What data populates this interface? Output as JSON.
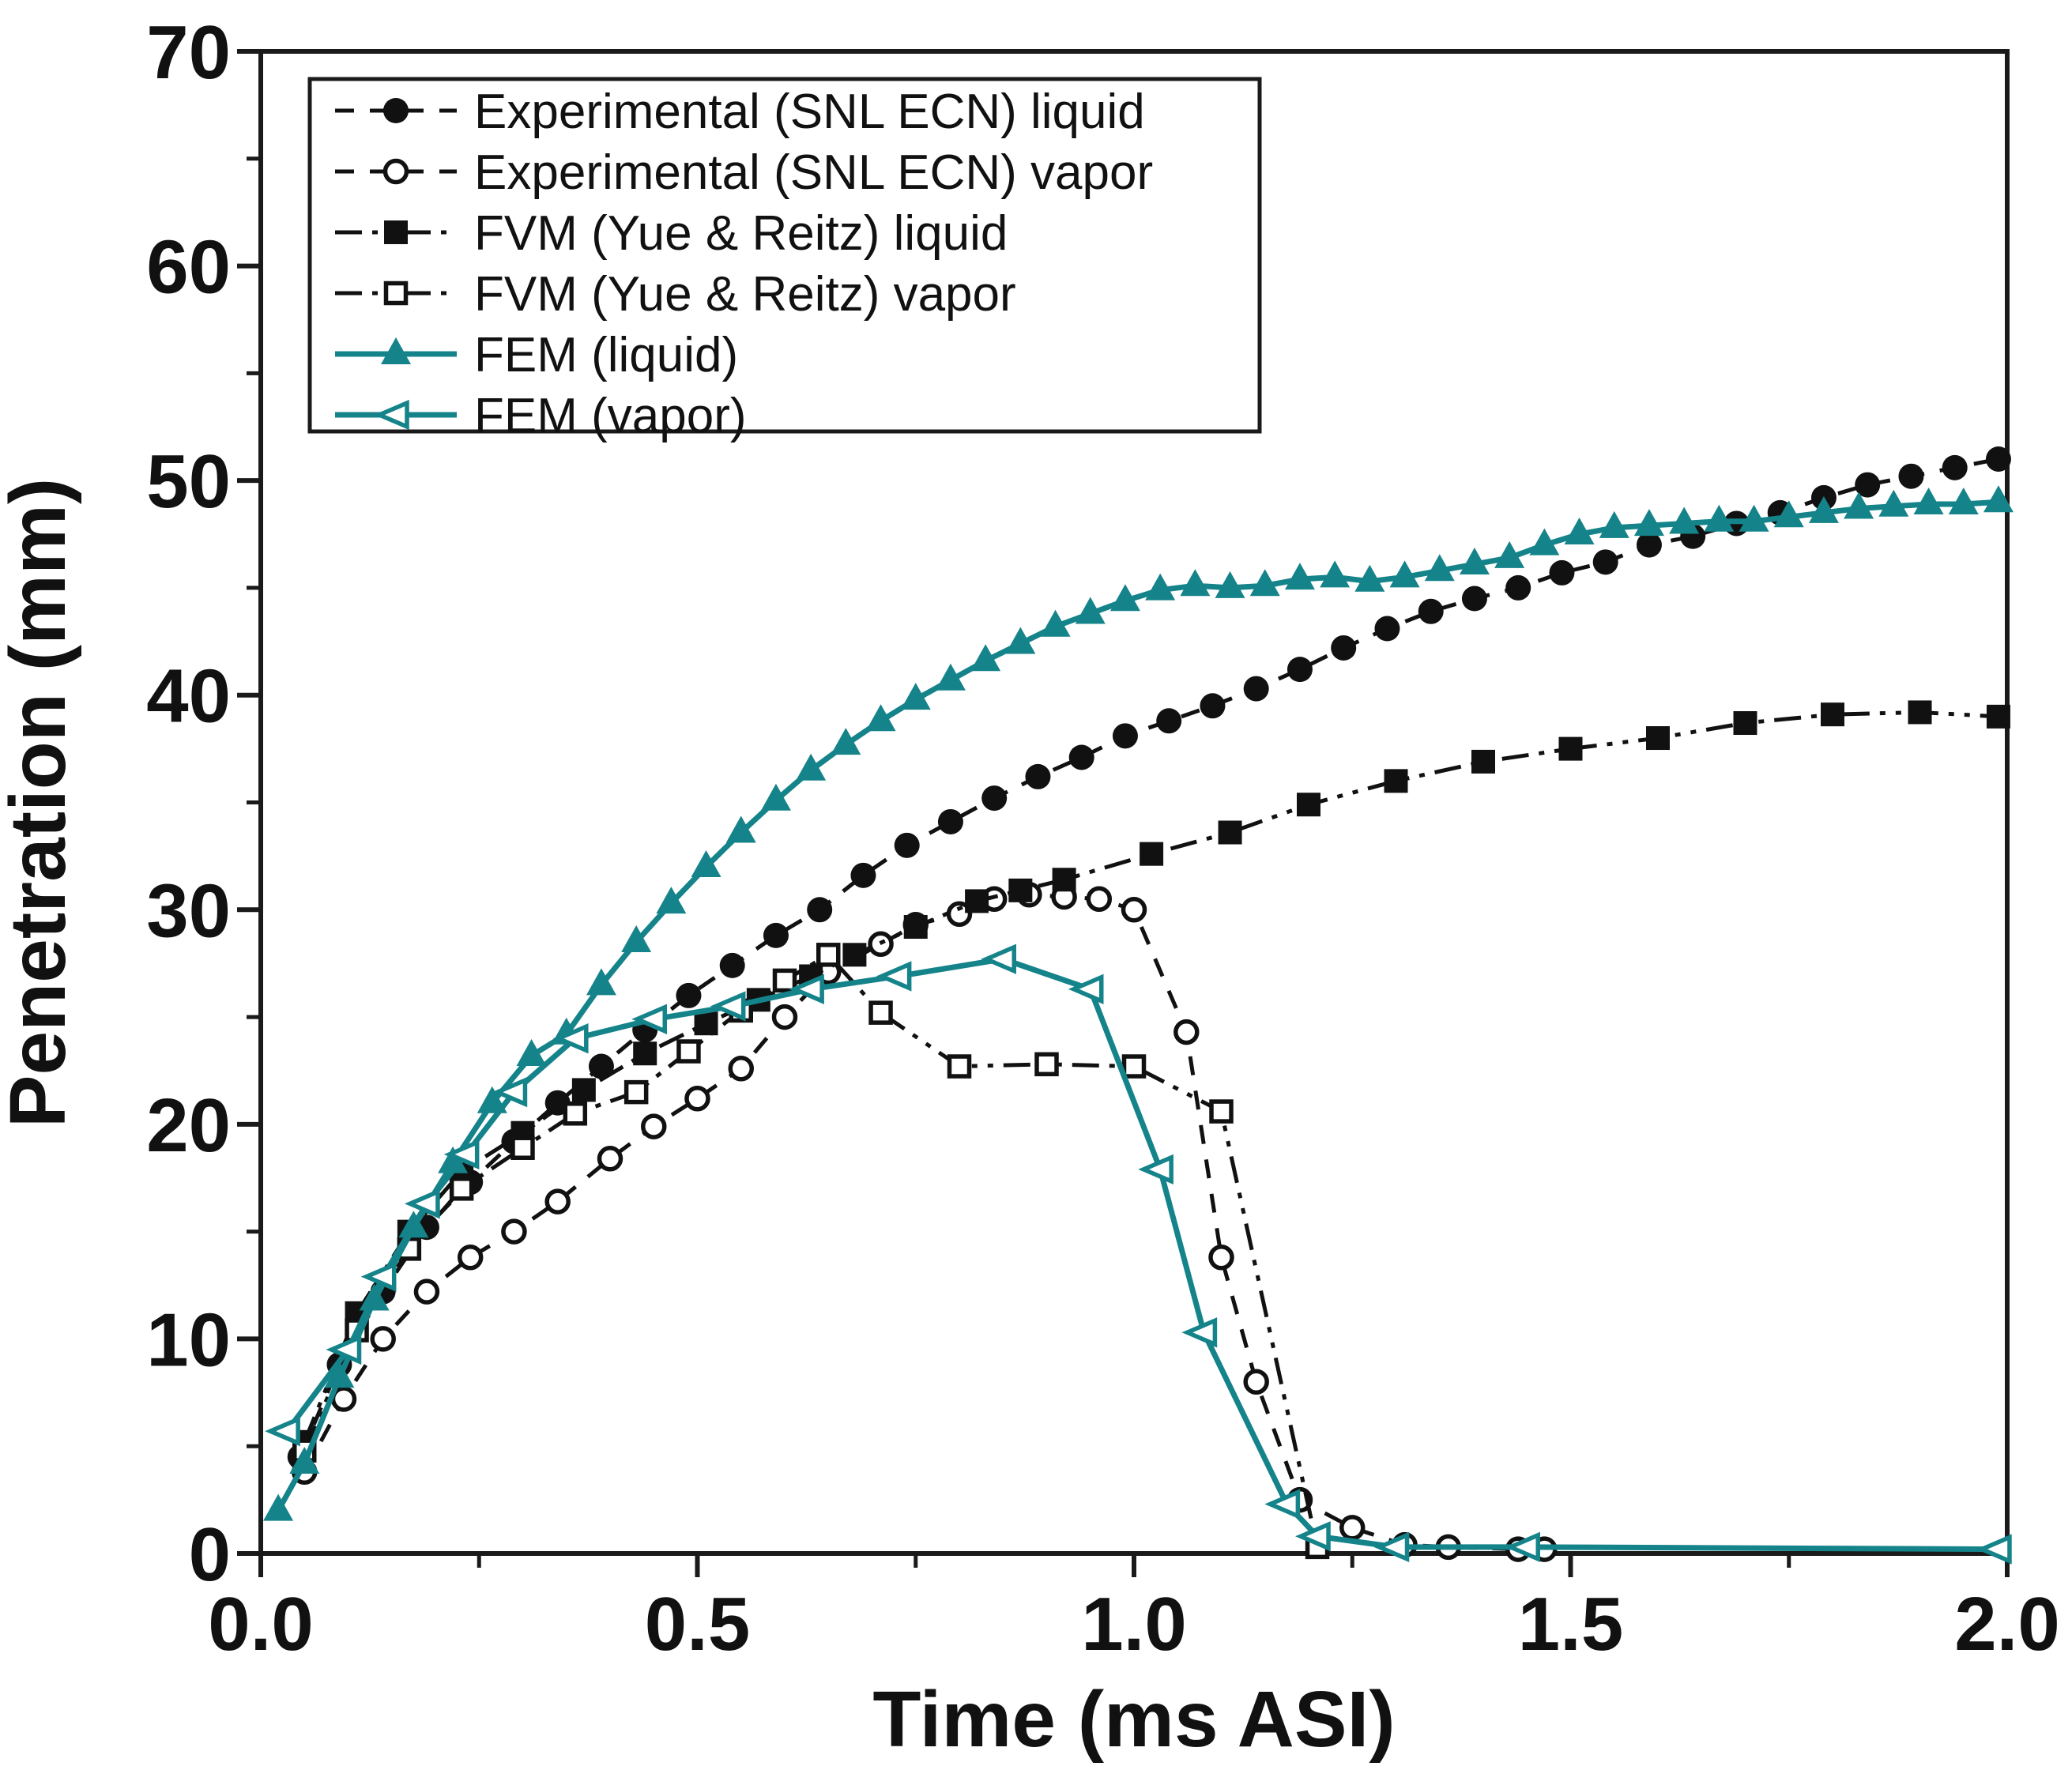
{
  "figure": {
    "background": "#ffffff",
    "axis_color": "#1a1a1a",
    "teal_color": "#15838a",
    "black_color": "#111111"
  },
  "chart_data": {
    "type": "line",
    "title": "",
    "xlabel": "Time (ms ASI)",
    "ylabel": "Penetration (mm)",
    "xlim": [
      0.0,
      2.0
    ],
    "ylim": [
      0,
      70
    ],
    "grid": "off",
    "legend_position": "top-left",
    "x_major_ticks": [
      0.0,
      0.5,
      1.0,
      1.5,
      2.0
    ],
    "x_major_tick_labels": [
      "0.0",
      "0.5",
      "1.0",
      "1.5",
      "2.0"
    ],
    "x_minor_ticks": [
      0.25,
      0.75,
      1.25,
      1.75
    ],
    "y_major_ticks": [
      0,
      10,
      20,
      30,
      40,
      50,
      60,
      70
    ],
    "y_major_tick_labels": [
      "0",
      "10",
      "20",
      "30",
      "40",
      "50",
      "60",
      "70"
    ],
    "y_minor_ticks": [
      5,
      15,
      25,
      35,
      45,
      55,
      65
    ],
    "series": [
      {
        "id": "exp_liquid",
        "name": "Experimental (SNL ECN) liquid",
        "color": "#111111",
        "marker": "circle-filled",
        "line": "dashed",
        "points": [
          [
            0.045,
            4.5
          ],
          [
            0.09,
            8.8
          ],
          [
            0.14,
            12.2
          ],
          [
            0.19,
            15.2
          ],
          [
            0.24,
            17.3
          ],
          [
            0.29,
            19.2
          ],
          [
            0.34,
            21.0
          ],
          [
            0.39,
            22.7
          ],
          [
            0.44,
            24.4
          ],
          [
            0.49,
            26.0
          ],
          [
            0.54,
            27.4
          ],
          [
            0.59,
            28.8
          ],
          [
            0.64,
            30.0
          ],
          [
            0.69,
            31.6
          ],
          [
            0.74,
            33.0
          ],
          [
            0.79,
            34.1
          ],
          [
            0.84,
            35.2
          ],
          [
            0.89,
            36.2
          ],
          [
            0.94,
            37.1
          ],
          [
            0.99,
            38.1
          ],
          [
            1.04,
            38.8
          ],
          [
            1.09,
            39.5
          ],
          [
            1.14,
            40.3
          ],
          [
            1.19,
            41.2
          ],
          [
            1.24,
            42.2
          ],
          [
            1.29,
            43.1
          ],
          [
            1.34,
            43.9
          ],
          [
            1.39,
            44.5
          ],
          [
            1.44,
            45.0
          ],
          [
            1.49,
            45.7
          ],
          [
            1.54,
            46.2
          ],
          [
            1.59,
            47.0
          ],
          [
            1.64,
            47.4
          ],
          [
            1.69,
            48.0
          ],
          [
            1.74,
            48.5
          ],
          [
            1.79,
            49.2
          ],
          [
            1.84,
            49.8
          ],
          [
            1.89,
            50.2
          ],
          [
            1.94,
            50.6
          ],
          [
            1.99,
            51.0
          ]
        ]
      },
      {
        "id": "exp_vapor",
        "name": "Experimental (SNL ECN) vapor",
        "color": "#111111",
        "marker": "circle-open",
        "line": "dashed",
        "points": [
          [
            0.05,
            3.8
          ],
          [
            0.095,
            7.2
          ],
          [
            0.14,
            10.0
          ],
          [
            0.19,
            12.2
          ],
          [
            0.24,
            13.8
          ],
          [
            0.29,
            15.0
          ],
          [
            0.34,
            16.4
          ],
          [
            0.4,
            18.4
          ],
          [
            0.45,
            19.9
          ],
          [
            0.5,
            21.2
          ],
          [
            0.55,
            22.6
          ],
          [
            0.6,
            25.0
          ],
          [
            0.65,
            27.1
          ],
          [
            0.71,
            28.4
          ],
          [
            0.75,
            29.3
          ],
          [
            0.8,
            29.8
          ],
          [
            0.84,
            30.5
          ],
          [
            0.88,
            30.7
          ],
          [
            0.92,
            30.6
          ],
          [
            0.96,
            30.5
          ],
          [
            1.0,
            30.0
          ],
          [
            1.06,
            24.3
          ],
          [
            1.1,
            13.8
          ],
          [
            1.14,
            8.0
          ],
          [
            1.19,
            2.5
          ],
          [
            1.25,
            1.2
          ],
          [
            1.31,
            0.4
          ],
          [
            1.36,
            0.3
          ],
          [
            1.44,
            0.2
          ],
          [
            1.47,
            0.2
          ]
        ]
      },
      {
        "id": "fvm_liquid",
        "name": "FVM  (Yue & Reitz) liquid",
        "color": "#111111",
        "marker": "square-filled",
        "line": "dashdotdot",
        "points": [
          [
            0.05,
            5.2
          ],
          [
            0.11,
            11.2
          ],
          [
            0.17,
            15.0
          ],
          [
            0.23,
            17.8
          ],
          [
            0.3,
            19.6
          ],
          [
            0.37,
            21.6
          ],
          [
            0.44,
            23.3
          ],
          [
            0.51,
            24.7
          ],
          [
            0.57,
            25.8
          ],
          [
            0.63,
            26.9
          ],
          [
            0.68,
            27.9
          ],
          [
            0.75,
            29.2
          ],
          [
            0.82,
            30.4
          ],
          [
            0.87,
            30.9
          ],
          [
            0.92,
            31.4
          ],
          [
            1.02,
            32.6
          ],
          [
            1.11,
            33.6
          ],
          [
            1.2,
            34.9
          ],
          [
            1.3,
            36.0
          ],
          [
            1.4,
            36.9
          ],
          [
            1.5,
            37.5
          ],
          [
            1.6,
            38.0
          ],
          [
            1.7,
            38.7
          ],
          [
            1.8,
            39.1
          ],
          [
            1.9,
            39.2
          ],
          [
            1.99,
            39.0
          ]
        ]
      },
      {
        "id": "fvm_vapor",
        "name": "FVM  (Yue & Reitz) vapor",
        "color": "#111111",
        "marker": "square-open",
        "line": "dashdotdot",
        "points": [
          [
            0.05,
            4.8
          ],
          [
            0.11,
            10.4
          ],
          [
            0.17,
            14.2
          ],
          [
            0.23,
            17.0
          ],
          [
            0.3,
            18.9
          ],
          [
            0.36,
            20.5
          ],
          [
            0.43,
            21.5
          ],
          [
            0.49,
            23.4
          ],
          [
            0.55,
            25.3
          ],
          [
            0.6,
            26.7
          ],
          [
            0.65,
            27.9
          ],
          [
            0.71,
            25.2
          ],
          [
            0.8,
            22.7
          ],
          [
            0.9,
            22.8
          ],
          [
            1.0,
            22.7
          ],
          [
            1.1,
            20.6
          ],
          [
            1.21,
            0.3
          ]
        ]
      },
      {
        "id": "fem_liquid",
        "name": "FEM (liquid)",
        "color": "#15838a",
        "marker": "triangle-up-filled",
        "line": "solid",
        "points": [
          [
            0.02,
            2.0
          ],
          [
            0.05,
            4.2
          ],
          [
            0.09,
            8.2
          ],
          [
            0.13,
            11.8
          ],
          [
            0.175,
            15.2
          ],
          [
            0.22,
            18.2
          ],
          [
            0.265,
            21.0
          ],
          [
            0.31,
            23.2
          ],
          [
            0.35,
            24.2
          ],
          [
            0.39,
            26.5
          ],
          [
            0.43,
            28.5
          ],
          [
            0.47,
            30.3
          ],
          [
            0.51,
            32.0
          ],
          [
            0.55,
            33.6
          ],
          [
            0.59,
            35.1
          ],
          [
            0.63,
            36.5
          ],
          [
            0.67,
            37.7
          ],
          [
            0.71,
            38.8
          ],
          [
            0.75,
            39.8
          ],
          [
            0.79,
            40.7
          ],
          [
            0.83,
            41.6
          ],
          [
            0.87,
            42.4
          ],
          [
            0.91,
            43.2
          ],
          [
            0.95,
            43.8
          ],
          [
            0.99,
            44.4
          ],
          [
            1.03,
            44.9
          ],
          [
            1.07,
            45.1
          ],
          [
            1.11,
            45.0
          ],
          [
            1.15,
            45.1
          ],
          [
            1.19,
            45.4
          ],
          [
            1.23,
            45.5
          ],
          [
            1.27,
            45.3
          ],
          [
            1.31,
            45.5
          ],
          [
            1.35,
            45.8
          ],
          [
            1.39,
            46.1
          ],
          [
            1.43,
            46.4
          ],
          [
            1.47,
            47.0
          ],
          [
            1.51,
            47.5
          ],
          [
            1.55,
            47.8
          ],
          [
            1.59,
            47.9
          ],
          [
            1.63,
            48.0
          ],
          [
            1.67,
            48.1
          ],
          [
            1.71,
            48.1
          ],
          [
            1.75,
            48.3
          ],
          [
            1.79,
            48.5
          ],
          [
            1.83,
            48.7
          ],
          [
            1.87,
            48.8
          ],
          [
            1.91,
            48.9
          ],
          [
            1.95,
            48.9
          ],
          [
            1.99,
            49.0
          ]
        ]
      },
      {
        "id": "fem_vapor",
        "name": "FEM (vapor)",
        "color": "#15838a",
        "marker": "triangle-left-open",
        "line": "solid",
        "points": [
          [
            0.03,
            5.7
          ],
          [
            0.1,
            9.5
          ],
          [
            0.14,
            12.9
          ],
          [
            0.19,
            16.3
          ],
          [
            0.235,
            18.6
          ],
          [
            0.29,
            21.5
          ],
          [
            0.36,
            24.0
          ],
          [
            0.45,
            24.9
          ],
          [
            0.54,
            25.5
          ],
          [
            0.63,
            26.3
          ],
          [
            0.73,
            26.9
          ],
          [
            0.85,
            27.7
          ],
          [
            0.95,
            26.3
          ],
          [
            1.03,
            17.9
          ],
          [
            1.08,
            10.3
          ],
          [
            1.175,
            2.3
          ],
          [
            1.21,
            0.8
          ],
          [
            1.3,
            0.3
          ],
          [
            1.45,
            0.3
          ],
          [
            1.99,
            0.2
          ]
        ]
      }
    ]
  }
}
